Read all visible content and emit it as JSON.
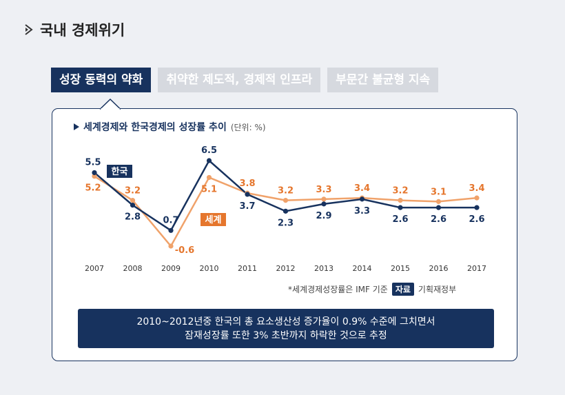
{
  "page": {
    "title": "국내 경제위기",
    "tabs": [
      {
        "label": "성장 동력의 약화",
        "active": true
      },
      {
        "label": "취약한 제도적, 경제적 인프라",
        "active": false
      },
      {
        "label": "부문간 불균형 지속",
        "active": false
      }
    ]
  },
  "chart_title": "세계경제와 한국경제의 성장률 추이",
  "chart_unit": "(단위: %)",
  "source_note": "*세계경제성장률은 IMF 기준",
  "source_tag": "자료",
  "source_name": "기획재정부",
  "summary": [
    "2010~2012년중 한국의 총 요소생산성 증가율이 0.9% 수준에 그치면서",
    "잠재성장률 또한 3% 초반까지 하락한 것으로 추정"
  ],
  "colors": {
    "korea": "#17325e",
    "world": "#f0a26a",
    "korea_label_bg": "#17325e",
    "world_label_bg": "#e5762d"
  },
  "chart_data": {
    "type": "line",
    "title": "세계경제와 한국경제의 성장률 추이",
    "unit": "(단위: %)",
    "x": [
      "2007",
      "2008",
      "2009",
      "2010",
      "2011",
      "2012",
      "2013",
      "2014",
      "2015",
      "2016",
      "2017"
    ],
    "series": [
      {
        "name": "한국",
        "values": [
          5.5,
          2.8,
          0.7,
          6.5,
          3.7,
          2.3,
          2.9,
          3.3,
          2.6,
          2.6,
          2.6
        ]
      },
      {
        "name": "세계",
        "values": [
          5.2,
          3.2,
          -0.6,
          5.1,
          3.8,
          3.2,
          3.3,
          3.4,
          3.2,
          3.1,
          3.4
        ]
      }
    ],
    "ylim": [
      -0.6,
      6.5
    ],
    "grid": false,
    "legend": "inline labels"
  }
}
